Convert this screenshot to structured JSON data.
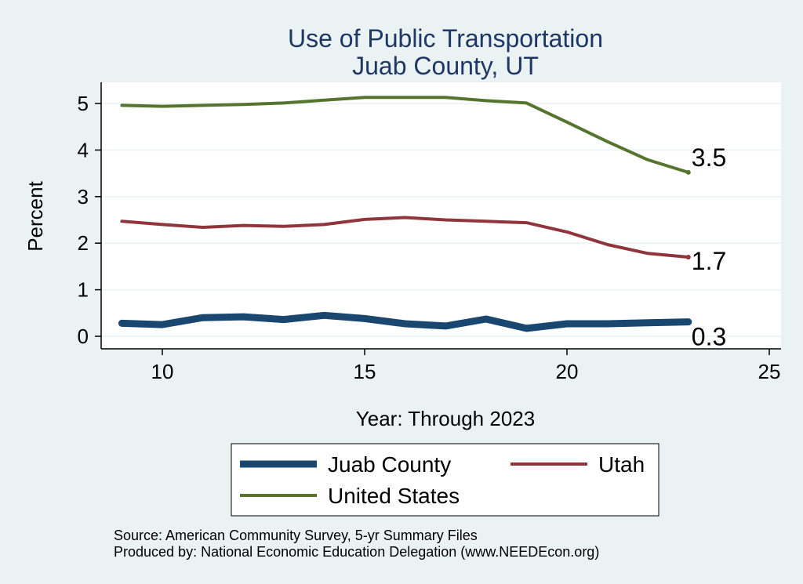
{
  "chart_data": {
    "type": "line",
    "title": [
      "Use of Public Transportation",
      "Juab County, UT"
    ],
    "xlabel": "Year: Through 2023",
    "ylabel": "Percent",
    "xlim": [
      9,
      25
    ],
    "ylim": [
      0,
      5
    ],
    "xticks": [
      10,
      15,
      20,
      25
    ],
    "yticks": [
      0,
      1,
      2,
      3,
      4,
      5
    ],
    "grid": true,
    "x": [
      9,
      10,
      11,
      12,
      13,
      14,
      15,
      16,
      17,
      18,
      19,
      20,
      21,
      22,
      23
    ],
    "series": [
      {
        "name": "Juab County",
        "color": "#1a476f",
        "values": [
          0.28,
          0.25,
          0.4,
          0.42,
          0.36,
          0.45,
          0.38,
          0.27,
          0.22,
          0.37,
          0.17,
          0.27,
          0.27,
          0.29,
          0.31
        ],
        "end_label": "0.3"
      },
      {
        "name": "Utah",
        "color": "#90353b",
        "values": [
          2.47,
          2.4,
          2.34,
          2.38,
          2.36,
          2.4,
          2.51,
          2.55,
          2.5,
          2.47,
          2.44,
          2.24,
          1.97,
          1.78,
          1.7
        ],
        "end_label": "1.7"
      },
      {
        "name": "United States",
        "color": "#55752f",
        "values": [
          4.96,
          4.94,
          4.96,
          4.98,
          5.01,
          5.07,
          5.13,
          5.13,
          5.13,
          5.06,
          5.01,
          4.6,
          4.18,
          3.79,
          3.52
        ],
        "end_label": "3.5"
      }
    ],
    "legend": {
      "placement": "bottom",
      "entries": [
        "Juab County",
        "Utah",
        "United States"
      ]
    }
  },
  "notes": {
    "source": "Source: American Community Survey, 5-yr Summary Files",
    "produced": "Produced by: National Economic Education Delegation (www.NEEDEcon.org)"
  }
}
